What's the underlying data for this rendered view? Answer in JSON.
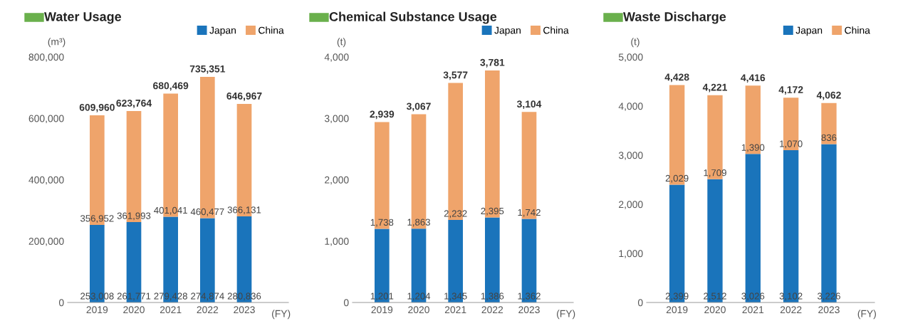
{
  "chart_data": [
    {
      "type": "bar",
      "title": "Water Usage",
      "ylabel": "(m³)",
      "xlabel": "(FY)",
      "stacked": true,
      "legend": "top right",
      "grid": false,
      "categories": [
        "2019",
        "2020",
        "2021",
        "2022",
        "2023"
      ],
      "ylim": [
        0,
        800000
      ],
      "yticks": [
        {
          "value": 0,
          "label": "0"
        },
        {
          "value": 200000,
          "label": "200,000"
        },
        {
          "value": 400000,
          "label": "400,000"
        },
        {
          "value": 600000,
          "label": "600,000"
        },
        {
          "value": 800000,
          "label": "800,000"
        }
      ],
      "series": [
        {
          "name": "Japan",
          "color": "#1a74bb",
          "values": [
            253008,
            261771,
            279428,
            274874,
            280836
          ],
          "value_labels": [
            "253,008",
            "261,771",
            "279,428",
            "274,874",
            "280,836"
          ]
        },
        {
          "name": "China",
          "color": "#efa46b",
          "values": [
            356952,
            361993,
            401041,
            460477,
            366131
          ],
          "value_labels": [
            "356,952",
            "361,993",
            "401,041",
            "460,477",
            "366,131"
          ]
        }
      ],
      "totals": [
        "609,960",
        "623,764",
        "680,469",
        "735,351",
        "646,967"
      ]
    },
    {
      "type": "bar",
      "title": "Chemical Substance Usage",
      "ylabel": "(t)",
      "xlabel": "(FY)",
      "stacked": true,
      "legend": "top right",
      "grid": false,
      "categories": [
        "2019",
        "2020",
        "2021",
        "2022",
        "2023"
      ],
      "ylim": [
        0,
        4000
      ],
      "yticks": [
        {
          "value": 0,
          "label": "0"
        },
        {
          "value": 1000,
          "label": "1,000"
        },
        {
          "value": 2000,
          "label": "2,000"
        },
        {
          "value": 3000,
          "label": "3,000"
        },
        {
          "value": 4000,
          "label": "4,000"
        }
      ],
      "series": [
        {
          "name": "Japan",
          "color": "#1a74bb",
          "values": [
            1201,
            1204,
            1345,
            1386,
            1362
          ],
          "value_labels": [
            "1,201",
            "1,204",
            "1,345",
            "1,386",
            "1,362"
          ]
        },
        {
          "name": "China",
          "color": "#efa46b",
          "values": [
            1738,
            1863,
            2232,
            2395,
            1742
          ],
          "value_labels": [
            "1,738",
            "1,863",
            "2,232",
            "2,395",
            "1,742"
          ]
        }
      ],
      "totals": [
        "2,939",
        "3,067",
        "3,577",
        "3,781",
        "3,104"
      ]
    },
    {
      "type": "bar",
      "title": "Waste Discharge",
      "ylabel": "(t)",
      "xlabel": "(FY)",
      "stacked": true,
      "legend": "top right",
      "grid": false,
      "categories": [
        "2019",
        "2020",
        "2021",
        "2022",
        "2023"
      ],
      "ylim": [
        0,
        5000
      ],
      "yticks": [
        {
          "value": 0,
          "label": "0"
        },
        {
          "value": 1000,
          "label": "1,000"
        },
        {
          "value": 2000,
          "label": "2,000"
        },
        {
          "value": 3000,
          "label": "3,000"
        },
        {
          "value": 4000,
          "label": "4,000"
        },
        {
          "value": 5000,
          "label": "5,000"
        }
      ],
      "series": [
        {
          "name": "Japan",
          "color": "#1a74bb",
          "values": [
            2399,
            2512,
            3026,
            3102,
            3226
          ],
          "value_labels": [
            "2,399",
            "2,512",
            "3,026",
            "3,102",
            "3,226"
          ]
        },
        {
          "name": "China",
          "color": "#efa46b",
          "values": [
            2029,
            1709,
            1390,
            1070,
            836
          ],
          "value_labels": [
            "2,029",
            "1,709",
            "1,390",
            "1,070",
            "836"
          ]
        }
      ],
      "totals": [
        "4,428",
        "4,221",
        "4,416",
        "4,172",
        "4,062"
      ]
    }
  ]
}
